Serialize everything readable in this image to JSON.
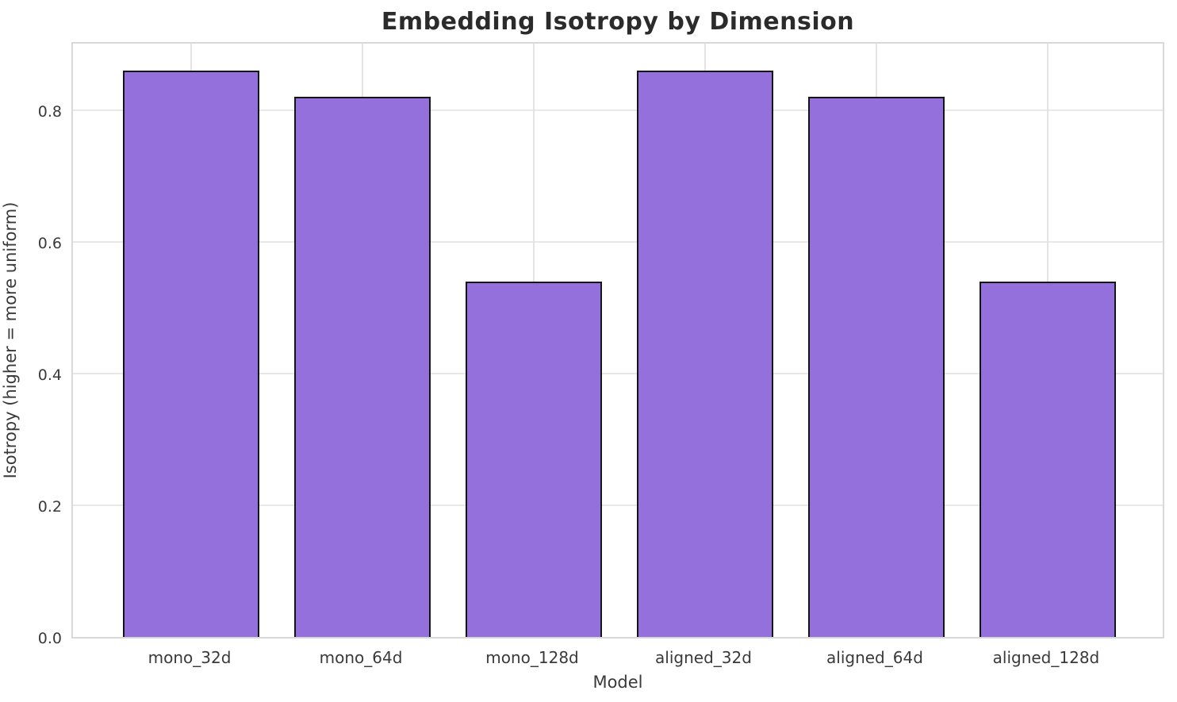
{
  "chart_data": {
    "type": "bar",
    "title": "Embedding Isotropy by Dimension",
    "xlabel": "Model",
    "ylabel": "Isotropy (higher = more uniform)",
    "categories": [
      "mono_32d",
      "mono_64d",
      "mono_128d",
      "aligned_32d",
      "aligned_64d",
      "aligned_128d"
    ],
    "values": [
      0.86,
      0.82,
      0.54,
      0.86,
      0.82,
      0.54
    ],
    "ylim": [
      0,
      0.906
    ],
    "yticks": [
      0.0,
      0.2,
      0.4,
      0.6,
      0.8
    ],
    "ytick_labels": [
      "0.0",
      "0.2",
      "0.4",
      "0.6",
      "0.8"
    ],
    "grid": true,
    "legend": "none",
    "bar_color": "#9370DB",
    "bar_edge_color": "#151515",
    "grid_color": "#e5e5e5",
    "spine_color": "#d9d9d9",
    "title_color": "#2b2b2b",
    "tick_color": "#3a3a3a"
  }
}
